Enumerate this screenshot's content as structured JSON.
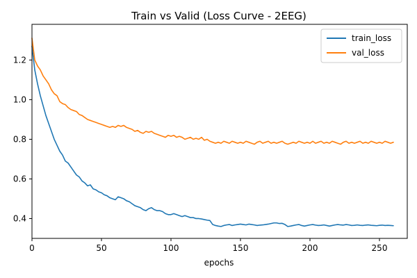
{
  "chart_data": {
    "type": "line",
    "title": "Train vs Valid  (Loss Curve - 2EEG)",
    "xlabel": "epochs",
    "ylabel": "",
    "xlim": [
      0,
      270
    ],
    "ylim": [
      0.3,
      1.38
    ],
    "xticks": [
      0,
      50,
      100,
      150,
      200,
      250
    ],
    "yticks": [
      0.4,
      0.6,
      0.8,
      1.0,
      1.2
    ],
    "ytick_labels": [
      "0.4",
      "0.6",
      "0.8",
      "1.0",
      "1.2"
    ],
    "grid": false,
    "legend_position": "top-right",
    "series": [
      {
        "name": "train_loss",
        "color": "#1f77b4",
        "x": [
          0,
          2,
          4,
          6,
          8,
          10,
          12,
          14,
          16,
          18,
          20,
          22,
          24,
          26,
          28,
          30,
          32,
          34,
          36,
          38,
          40,
          42,
          44,
          46,
          48,
          50,
          52,
          54,
          56,
          58,
          60,
          62,
          64,
          66,
          68,
          70,
          72,
          74,
          76,
          78,
          80,
          82,
          84,
          86,
          88,
          90,
          92,
          94,
          96,
          98,
          100,
          102,
          104,
          106,
          108,
          110,
          112,
          114,
          116,
          118,
          120,
          122,
          124,
          126,
          128,
          130,
          132,
          134,
          136,
          138,
          140,
          142,
          144,
          146,
          148,
          150,
          152,
          154,
          156,
          158,
          160,
          162,
          164,
          166,
          168,
          170,
          172,
          174,
          176,
          178,
          180,
          182,
          184,
          186,
          188,
          190,
          192,
          194,
          196,
          198,
          200,
          202,
          204,
          206,
          208,
          210,
          212,
          214,
          216,
          218,
          220,
          222,
          224,
          226,
          228,
          230,
          232,
          234,
          236,
          238,
          240,
          242,
          244,
          246,
          248,
          250,
          252,
          254,
          256,
          258,
          260
        ],
        "y": [
          1.27,
          1.15,
          1.08,
          1.02,
          0.97,
          0.92,
          0.88,
          0.84,
          0.8,
          0.77,
          0.74,
          0.72,
          0.69,
          0.68,
          0.66,
          0.64,
          0.62,
          0.61,
          0.59,
          0.58,
          0.565,
          0.57,
          0.55,
          0.545,
          0.535,
          0.53,
          0.52,
          0.515,
          0.505,
          0.5,
          0.495,
          0.51,
          0.505,
          0.5,
          0.49,
          0.485,
          0.475,
          0.465,
          0.46,
          0.455,
          0.445,
          0.44,
          0.45,
          0.455,
          0.445,
          0.44,
          0.44,
          0.435,
          0.425,
          0.42,
          0.42,
          0.425,
          0.42,
          0.415,
          0.41,
          0.415,
          0.41,
          0.405,
          0.405,
          0.4,
          0.4,
          0.398,
          0.395,
          0.392,
          0.39,
          0.37,
          0.365,
          0.362,
          0.36,
          0.365,
          0.368,
          0.37,
          0.365,
          0.368,
          0.37,
          0.372,
          0.37,
          0.368,
          0.372,
          0.37,
          0.368,
          0.365,
          0.367,
          0.368,
          0.37,
          0.372,
          0.375,
          0.378,
          0.378,
          0.375,
          0.376,
          0.37,
          0.36,
          0.362,
          0.365,
          0.368,
          0.37,
          0.365,
          0.362,
          0.365,
          0.368,
          0.37,
          0.367,
          0.365,
          0.366,
          0.368,
          0.365,
          0.362,
          0.365,
          0.368,
          0.37,
          0.368,
          0.367,
          0.37,
          0.368,
          0.365,
          0.366,
          0.368,
          0.366,
          0.365,
          0.367,
          0.368,
          0.366,
          0.365,
          0.364,
          0.366,
          0.367,
          0.365,
          0.366,
          0.365,
          0.364
        ]
      },
      {
        "name": "val_loss",
        "color": "#ff7f0e",
        "x": [
          0,
          2,
          4,
          6,
          8,
          10,
          12,
          14,
          16,
          18,
          20,
          22,
          24,
          26,
          28,
          30,
          32,
          34,
          36,
          38,
          40,
          42,
          44,
          46,
          48,
          50,
          52,
          54,
          56,
          58,
          60,
          62,
          64,
          66,
          68,
          70,
          72,
          74,
          76,
          78,
          80,
          82,
          84,
          86,
          88,
          90,
          92,
          94,
          96,
          98,
          100,
          102,
          104,
          106,
          108,
          110,
          112,
          114,
          116,
          118,
          120,
          122,
          124,
          126,
          128,
          130,
          132,
          134,
          136,
          138,
          140,
          142,
          144,
          146,
          148,
          150,
          152,
          154,
          156,
          158,
          160,
          162,
          164,
          166,
          168,
          170,
          172,
          174,
          176,
          178,
          180,
          182,
          184,
          186,
          188,
          190,
          192,
          194,
          196,
          198,
          200,
          202,
          204,
          206,
          208,
          210,
          212,
          214,
          216,
          218,
          220,
          222,
          224,
          226,
          228,
          230,
          232,
          234,
          236,
          238,
          240,
          242,
          244,
          246,
          248,
          250,
          252,
          254,
          256,
          258,
          260
        ],
        "y": [
          1.31,
          1.2,
          1.17,
          1.15,
          1.12,
          1.1,
          1.08,
          1.05,
          1.03,
          1.02,
          0.99,
          0.98,
          0.975,
          0.96,
          0.95,
          0.945,
          0.94,
          0.925,
          0.92,
          0.91,
          0.9,
          0.895,
          0.89,
          0.885,
          0.88,
          0.875,
          0.87,
          0.865,
          0.86,
          0.865,
          0.86,
          0.87,
          0.865,
          0.87,
          0.86,
          0.855,
          0.85,
          0.84,
          0.845,
          0.835,
          0.83,
          0.84,
          0.835,
          0.84,
          0.83,
          0.825,
          0.82,
          0.815,
          0.81,
          0.82,
          0.815,
          0.82,
          0.81,
          0.815,
          0.81,
          0.8,
          0.805,
          0.81,
          0.8,
          0.805,
          0.8,
          0.81,
          0.795,
          0.8,
          0.79,
          0.785,
          0.78,
          0.785,
          0.78,
          0.79,
          0.785,
          0.78,
          0.79,
          0.785,
          0.78,
          0.785,
          0.78,
          0.79,
          0.785,
          0.78,
          0.775,
          0.785,
          0.79,
          0.78,
          0.785,
          0.79,
          0.78,
          0.785,
          0.78,
          0.785,
          0.79,
          0.78,
          0.775,
          0.78,
          0.785,
          0.78,
          0.79,
          0.785,
          0.78,
          0.785,
          0.78,
          0.79,
          0.78,
          0.785,
          0.79,
          0.78,
          0.785,
          0.78,
          0.79,
          0.785,
          0.78,
          0.775,
          0.785,
          0.79,
          0.78,
          0.785,
          0.78,
          0.785,
          0.79,
          0.78,
          0.785,
          0.78,
          0.79,
          0.785,
          0.78,
          0.785,
          0.78,
          0.79,
          0.785,
          0.78,
          0.785
        ]
      }
    ]
  }
}
